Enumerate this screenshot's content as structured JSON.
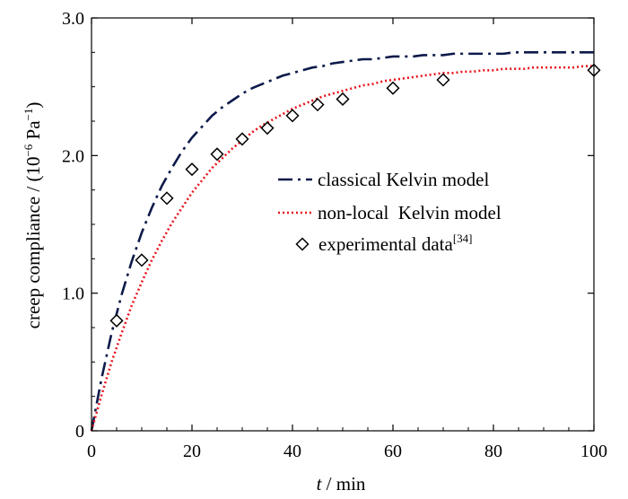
{
  "chart_data": {
    "type": "line",
    "xlabel": {
      "var": "t",
      "unit": " / min"
    },
    "ylabel": {
      "prefix": "creep compliance / (10",
      "exp1": "−6",
      "mid": " Pa",
      "exp2": "−1",
      "suffix": ")"
    },
    "xlim": [
      0,
      100
    ],
    "ylim": [
      0,
      3.0
    ],
    "x_ticks": [
      0,
      20,
      40,
      60,
      80,
      100
    ],
    "x_tick_labels": [
      "0",
      "20",
      "40",
      "60",
      "80",
      "100"
    ],
    "y_ticks": [
      0,
      1.0,
      2.0,
      3.0
    ],
    "y_tick_labels": [
      "0",
      "1.0",
      "2.0",
      "3.0"
    ],
    "grid": false,
    "legend_position": "center-right",
    "series": [
      {
        "name": "classical Kelvin model",
        "style": "dash-dot",
        "color": "#0d1a4a",
        "x": [
          0,
          2,
          4,
          6,
          8,
          10,
          12,
          14,
          16,
          18,
          20,
          22,
          24,
          26,
          28,
          30,
          32,
          34,
          36,
          38,
          40,
          42,
          44,
          46,
          48,
          50,
          52,
          54,
          56,
          58,
          60,
          62,
          64,
          66,
          68,
          70,
          72,
          74,
          76,
          78,
          80,
          82,
          84,
          86,
          88,
          90,
          92,
          94,
          96,
          98,
          100
        ],
        "y": [
          0.0,
          0.38,
          0.71,
          0.99,
          1.23,
          1.44,
          1.62,
          1.78,
          1.91,
          2.03,
          2.13,
          2.21,
          2.29,
          2.35,
          2.4,
          2.45,
          2.49,
          2.52,
          2.55,
          2.58,
          2.6,
          2.62,
          2.64,
          2.65,
          2.67,
          2.68,
          2.69,
          2.7,
          2.7,
          2.71,
          2.72,
          2.72,
          2.72,
          2.73,
          2.73,
          2.73,
          2.74,
          2.74,
          2.74,
          2.74,
          2.74,
          2.74,
          2.75,
          2.75,
          2.75,
          2.75,
          2.75,
          2.75,
          2.75,
          2.75,
          2.75
        ]
      },
      {
        "name": "non-local  Kelvin model",
        "style": "dotted",
        "color": "#e8141c",
        "x": [
          0,
          2,
          4,
          6,
          8,
          10,
          12,
          14,
          16,
          18,
          20,
          22,
          24,
          26,
          28,
          30,
          32,
          34,
          36,
          38,
          40,
          42,
          44,
          46,
          48,
          50,
          52,
          54,
          56,
          58,
          60,
          62,
          64,
          66,
          68,
          70,
          72,
          74,
          76,
          78,
          80,
          82,
          84,
          86,
          88,
          90,
          92,
          94,
          96,
          98,
          100
        ],
        "y": [
          0.0,
          0.26,
          0.5,
          0.71,
          0.91,
          1.08,
          1.24,
          1.38,
          1.51,
          1.62,
          1.73,
          1.82,
          1.91,
          1.98,
          2.05,
          2.11,
          2.17,
          2.22,
          2.26,
          2.3,
          2.34,
          2.37,
          2.4,
          2.43,
          2.45,
          2.47,
          2.49,
          2.51,
          2.52,
          2.54,
          2.55,
          2.56,
          2.57,
          2.58,
          2.59,
          2.6,
          2.6,
          2.61,
          2.61,
          2.62,
          2.62,
          2.63,
          2.63,
          2.63,
          2.64,
          2.64,
          2.64,
          2.64,
          2.64,
          2.65,
          2.65
        ]
      },
      {
        "name": "experimental data",
        "name_sup": "[34]",
        "style": "markers",
        "marker": "diamond-open",
        "color": "#000000",
        "x": [
          5,
          10,
          15,
          20,
          25,
          30,
          35,
          40,
          45,
          50,
          60,
          70,
          100
        ],
        "y": [
          0.8,
          1.24,
          1.69,
          1.9,
          2.01,
          2.12,
          2.2,
          2.29,
          2.37,
          2.41,
          2.49,
          2.55,
          2.62
        ]
      }
    ]
  }
}
